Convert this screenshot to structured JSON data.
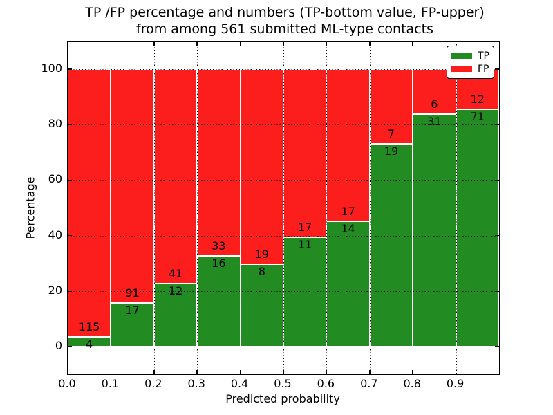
{
  "title": {
    "line1": "TP /FP percentage and numbers (TP-bottom value, FP-upper)",
    "line2": "from among 561 submitted ML-type contacts"
  },
  "axes": {
    "xlabel": "Predicted probability",
    "ylabel": "Percentage"
  },
  "legend": {
    "items": [
      {
        "label": "TP",
        "color": "#228b22"
      },
      {
        "label": "FP",
        "color": "#fc1d1d"
      }
    ]
  },
  "chart_data": {
    "type": "bar",
    "stacked": true,
    "normalized_to_percent": true,
    "title": "TP /FP percentage and numbers (TP-bottom value, FP-upper)\nfrom among 561 submitted ML-type contacts",
    "xlabel": "Predicted probability",
    "ylabel": "Percentage",
    "total_contacts": 561,
    "categories": [
      "0.0-0.1",
      "0.1-0.2",
      "0.2-0.3",
      "0.3-0.4",
      "0.4-0.5",
      "0.5-0.6",
      "0.6-0.7",
      "0.7-0.8",
      "0.8-0.9",
      "0.9-1.0"
    ],
    "series": [
      {
        "name": "TP",
        "color": "#228b22",
        "counts": [
          4,
          17,
          12,
          16,
          8,
          11,
          14,
          19,
          31,
          71
        ]
      },
      {
        "name": "FP",
        "color": "#fc1d1d",
        "counts": [
          115,
          91,
          41,
          33,
          19,
          17,
          17,
          7,
          6,
          12
        ]
      }
    ],
    "tp_percent_per_bin": [
      3.36,
      15.74,
      22.64,
      32.65,
      29.63,
      39.29,
      45.16,
      73.08,
      83.78,
      85.54
    ],
    "x_ticks": [
      "0.0",
      "0.1",
      "0.2",
      "0.3",
      "0.4",
      "0.5",
      "0.6",
      "0.7",
      "0.8",
      "0.9"
    ],
    "y_ticks": [
      0,
      20,
      40,
      60,
      80,
      100
    ],
    "xlim": [
      0,
      1
    ],
    "ylim": [
      -10,
      110
    ],
    "grid": true,
    "grid_style": "dotted",
    "legend_position": "upper right"
  }
}
